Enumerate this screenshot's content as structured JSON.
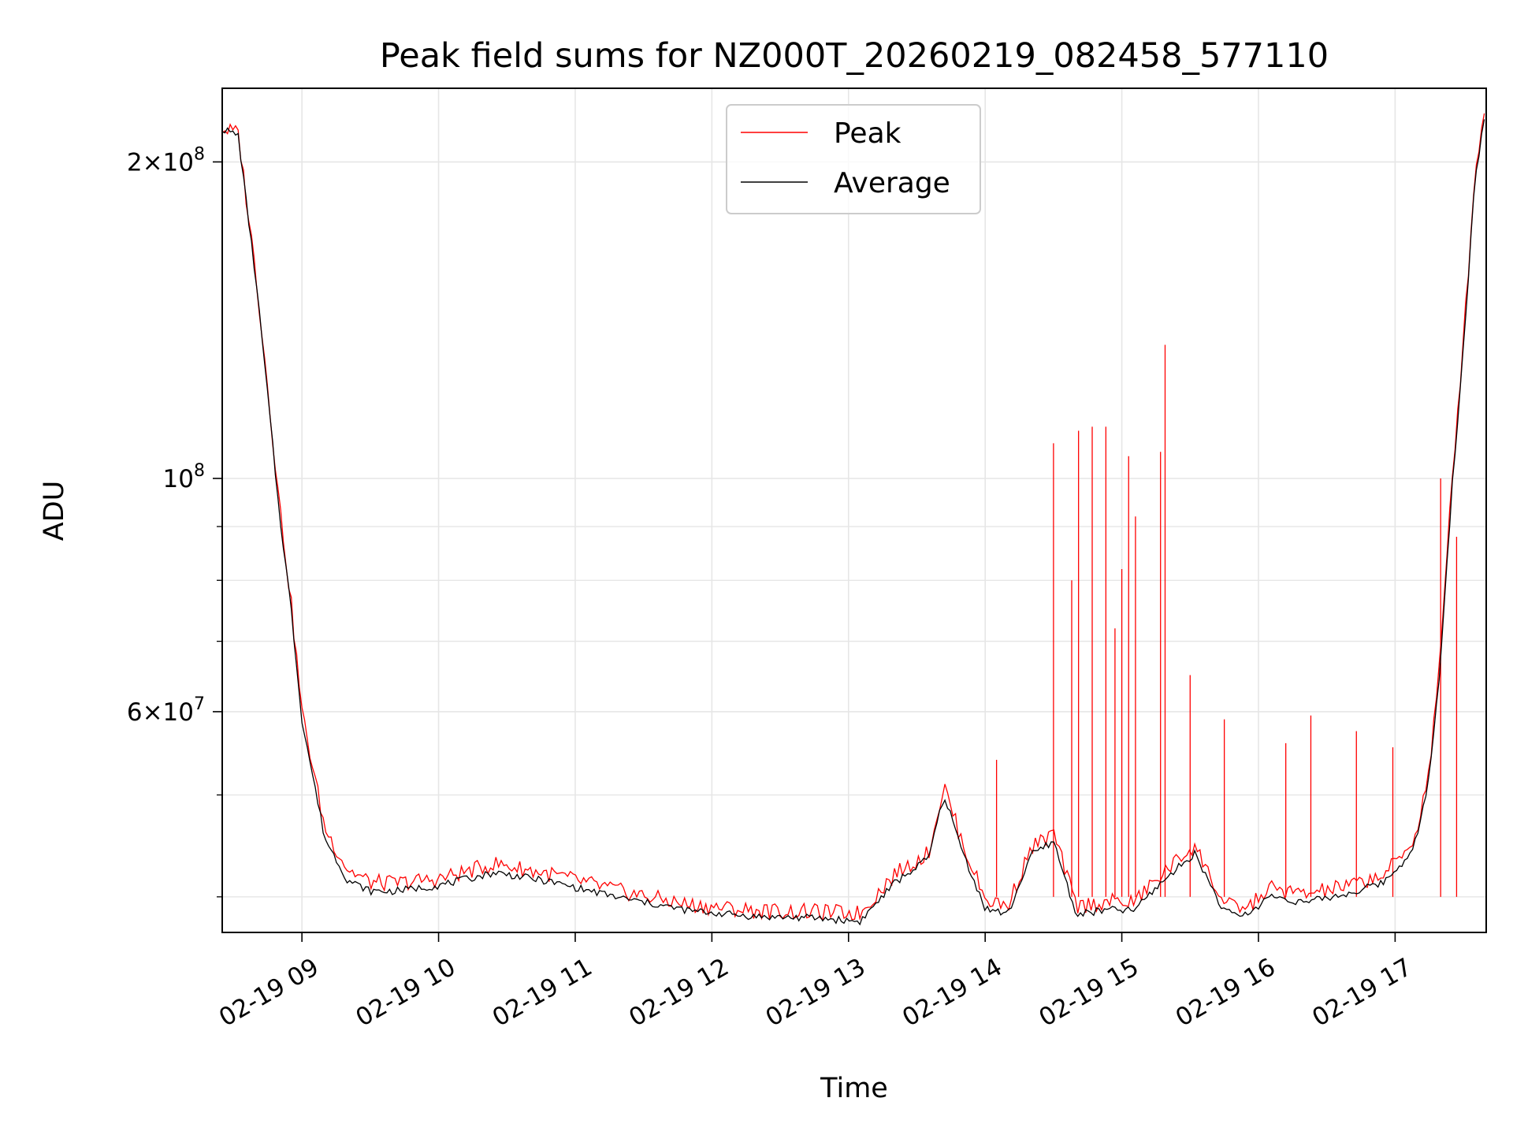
{
  "chart_data": {
    "type": "line",
    "title": "Peak field sums for NZ000T_20260219_082458_577110",
    "xlabel": "Time",
    "ylabel": "ADU",
    "yscale": "log",
    "ylim": [
      37000000,
      235000000
    ],
    "xlim": [
      "2026-02-19 08:25",
      "2026-02-19 17:40"
    ],
    "grid": true,
    "legend_position": "upper-center",
    "x_tick_labels": [
      "02-19 09",
      "02-19 10",
      "02-19 11",
      "02-19 12",
      "02-19 13",
      "02-19 14",
      "02-19 15",
      "02-19 16",
      "02-19 17"
    ],
    "x_ticks": [
      "2026-02-19 09:00",
      "2026-02-19 10:00",
      "2026-02-19 11:00",
      "2026-02-19 12:00",
      "2026-02-19 13:00",
      "2026-02-19 14:00",
      "2026-02-19 15:00",
      "2026-02-19 16:00",
      "2026-02-19 17:00"
    ],
    "y_major_ticks": [
      {
        "value": 60000000,
        "mantissa": "6",
        "exponent": "7"
      },
      {
        "value": 100000000,
        "mantissa": "",
        "exponent": "8"
      },
      {
        "value": 200000000,
        "mantissa": "2",
        "exponent": "8"
      }
    ],
    "y_minor_ticks": [
      40000000,
      50000000,
      70000000,
      80000000,
      90000000
    ],
    "series": [
      {
        "name": "Peak",
        "color": "#ff0000",
        "x": [
          "2026-02-19 08:25",
          "2026-02-19 08:32",
          "2026-02-19 08:40",
          "2026-02-19 08:45",
          "2026-02-19 08:50",
          "2026-02-19 08:55",
          "2026-02-19 09:00",
          "2026-02-19 09:10",
          "2026-02-19 09:20",
          "2026-02-19 09:30",
          "2026-02-19 09:40",
          "2026-02-19 10:00",
          "2026-02-19 10:25",
          "2026-02-19 10:50",
          "2026-02-19 11:20",
          "2026-02-19 11:50",
          "2026-02-19 12:20",
          "2026-02-19 12:45",
          "2026-02-19 13:05",
          "2026-02-19 13:20",
          "2026-02-19 13:35",
          "2026-02-19 13:42",
          "2026-02-19 13:50",
          "2026-02-19 14:00",
          "2026-02-19 14:10",
          "2026-02-19 14:20",
          "2026-02-19 14:30",
          "2026-02-19 14:40",
          "2026-02-19 14:55",
          "2026-02-19 15:05",
          "2026-02-19 15:20",
          "2026-02-19 15:32",
          "2026-02-19 15:45",
          "2026-02-19 15:55",
          "2026-02-19 16:05",
          "2026-02-19 16:20",
          "2026-02-19 16:40",
          "2026-02-19 16:55",
          "2026-02-19 17:05",
          "2026-02-19 17:10",
          "2026-02-19 17:15",
          "2026-02-19 17:20",
          "2026-02-19 17:25",
          "2026-02-19 17:30",
          "2026-02-19 17:35",
          "2026-02-19 17:40"
        ],
        "y": [
          215000000,
          213000000,
          155000000,
          122000000,
          95000000,
          77000000,
          60000000,
          46500000,
          42500000,
          41300000,
          41200000,
          41600000,
          43000000,
          42000000,
          40500000,
          39300000,
          38800000,
          38700000,
          38600000,
          42000000,
          44000000,
          51000000,
          45000000,
          39800000,
          39200000,
          44500000,
          46000000,
          39200000,
          39600000,
          39500000,
          42500000,
          44800000,
          39300000,
          39000000,
          40800000,
          40200000,
          41000000,
          42000000,
          44200000,
          46500000,
          53000000,
          68000000,
          100000000,
          135000000,
          195000000,
          228000000
        ],
        "spikes": [
          {
            "x": "2026-02-19 14:05",
            "y": 54000000
          },
          {
            "x": "2026-02-19 14:30",
            "y": 108000000
          },
          {
            "x": "2026-02-19 14:38",
            "y": 80000000
          },
          {
            "x": "2026-02-19 14:41",
            "y": 111000000
          },
          {
            "x": "2026-02-19 14:47",
            "y": 112000000
          },
          {
            "x": "2026-02-19 14:53",
            "y": 112000000
          },
          {
            "x": "2026-02-19 14:57",
            "y": 72000000
          },
          {
            "x": "2026-02-19 15:00",
            "y": 82000000
          },
          {
            "x": "2026-02-19 15:03",
            "y": 105000000
          },
          {
            "x": "2026-02-19 15:06",
            "y": 92000000
          },
          {
            "x": "2026-02-19 15:17",
            "y": 106000000
          },
          {
            "x": "2026-02-19 15:19",
            "y": 134000000
          },
          {
            "x": "2026-02-19 15:30",
            "y": 65000000
          },
          {
            "x": "2026-02-19 15:45",
            "y": 59000000
          },
          {
            "x": "2026-02-19 16:12",
            "y": 56000000
          },
          {
            "x": "2026-02-19 16:23",
            "y": 59500000
          },
          {
            "x": "2026-02-19 16:43",
            "y": 57500000
          },
          {
            "x": "2026-02-19 16:59",
            "y": 55500000
          },
          {
            "x": "2026-02-19 17:20",
            "y": 100000000
          },
          {
            "x": "2026-02-19 17:27",
            "y": 88000000
          }
        ]
      },
      {
        "name": "Average",
        "color": "#000000",
        "x": [
          "2026-02-19 08:25",
          "2026-02-19 08:32",
          "2026-02-19 08:40",
          "2026-02-19 08:45",
          "2026-02-19 08:50",
          "2026-02-19 08:55",
          "2026-02-19 09:00",
          "2026-02-19 09:10",
          "2026-02-19 09:20",
          "2026-02-19 09:30",
          "2026-02-19 09:40",
          "2026-02-19 10:00",
          "2026-02-19 10:25",
          "2026-02-19 10:50",
          "2026-02-19 11:20",
          "2026-02-19 11:50",
          "2026-02-19 12:20",
          "2026-02-19 12:45",
          "2026-02-19 13:05",
          "2026-02-19 13:20",
          "2026-02-19 13:35",
          "2026-02-19 13:42",
          "2026-02-19 13:50",
          "2026-02-19 14:00",
          "2026-02-19 14:10",
          "2026-02-19 14:20",
          "2026-02-19 14:30",
          "2026-02-19 14:40",
          "2026-02-19 14:55",
          "2026-02-19 15:05",
          "2026-02-19 15:20",
          "2026-02-19 15:32",
          "2026-02-19 15:45",
          "2026-02-19 15:55",
          "2026-02-19 16:05",
          "2026-02-19 16:20",
          "2026-02-19 16:40",
          "2026-02-19 16:55",
          "2026-02-19 17:05",
          "2026-02-19 17:10",
          "2026-02-19 17:15",
          "2026-02-19 17:20",
          "2026-02-19 17:25",
          "2026-02-19 17:30",
          "2026-02-19 17:35",
          "2026-02-19 17:40"
        ],
        "y": [
          215000000,
          212000000,
          153000000,
          120000000,
          93000000,
          76000000,
          59000000,
          45500000,
          41500000,
          40500000,
          40500000,
          41000000,
          42200000,
          41300000,
          39900000,
          38800000,
          38300000,
          38200000,
          37900000,
          41200000,
          43500000,
          50000000,
          44200000,
          39000000,
          38500000,
          43800000,
          45200000,
          38500000,
          38900000,
          38800000,
          41800000,
          44000000,
          38700000,
          38400000,
          40100000,
          39500000,
          40300000,
          41300000,
          43500000,
          45800000,
          52000000,
          67000000,
          98000000,
          133000000,
          192000000,
          226000000
        ]
      }
    ]
  }
}
